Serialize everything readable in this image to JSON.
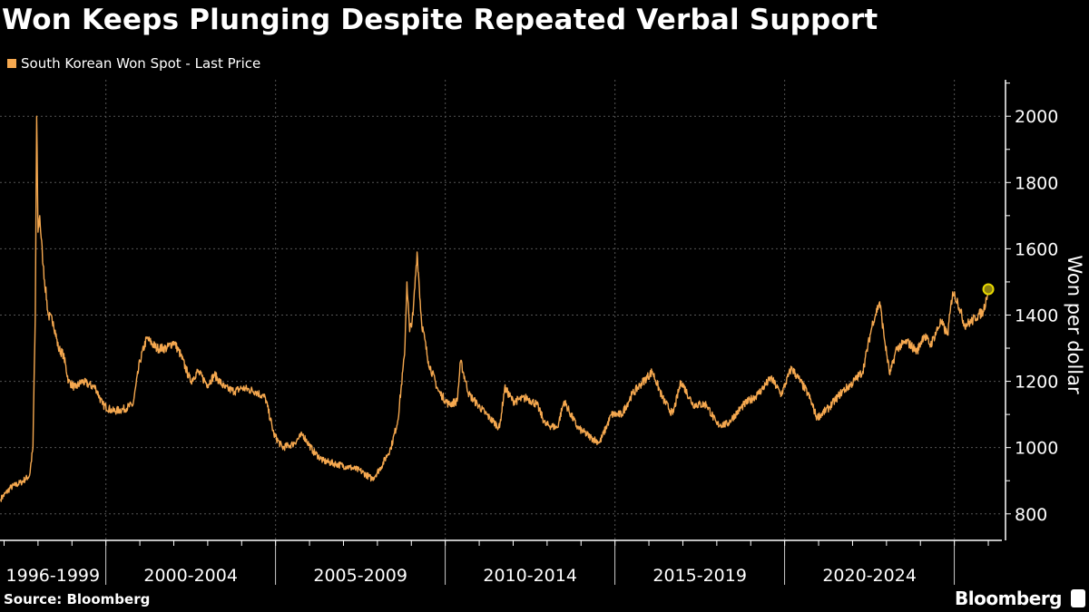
{
  "title": "Won Keeps Plunging Despite Repeated Verbal Support",
  "source": "Source: Bloomberg",
  "brand": "Bloomberg",
  "colors": {
    "line": "#f5a84f",
    "last_point": "#e8d800",
    "grid": "#555555"
  },
  "chart_data": {
    "type": "line",
    "title": "Won Keeps Plunging Despite Repeated Verbal Support",
    "xlabel": "",
    "ylabel": "Won per dollar",
    "legend": {
      "position": "top-left",
      "entries": [
        "South Korean Won Spot - Last Price"
      ]
    },
    "grid": true,
    "ylim": [
      720,
      2110
    ],
    "xlim": [
      1996.88,
      2026.4
    ],
    "yticks": [
      800,
      1000,
      1200,
      1400,
      1600,
      1800,
      2000
    ],
    "xgroups": [
      {
        "label": "1996-1999",
        "start": 1996.88,
        "end": 2000
      },
      {
        "label": "2000-2004",
        "start": 2000,
        "end": 2005
      },
      {
        "label": "2005-2009",
        "start": 2005,
        "end": 2010
      },
      {
        "label": "2010-2014",
        "start": 2010,
        "end": 2015
      },
      {
        "label": "2015-2019",
        "start": 2015,
        "end": 2020
      },
      {
        "label": "2020-2024",
        "start": 2020,
        "end": 2025
      },
      {
        "label": "",
        "start": 2025,
        "end": 2026.4
      }
    ],
    "series": [
      {
        "name": "South Korean Won Spot - Last Price",
        "x": [
          1996.9,
          1997.2,
          1997.5,
          1997.75,
          1997.85,
          1997.92,
          1997.96,
          1998.0,
          1998.05,
          1998.15,
          1998.3,
          1998.45,
          1998.6,
          1998.75,
          1998.9,
          1999.1,
          1999.3,
          1999.5,
          1999.7,
          1999.9,
          2000.2,
          2000.5,
          2000.8,
          2001.0,
          2001.2,
          2001.3,
          2001.5,
          2001.8,
          2002.0,
          2002.2,
          2002.5,
          2002.7,
          2003.0,
          2003.2,
          2003.5,
          2003.8,
          2004.0,
          2004.4,
          2004.7,
          2004.95,
          2005.2,
          2005.5,
          2005.8,
          2006.1,
          2006.4,
          2006.8,
          2007.2,
          2007.5,
          2007.85,
          2008.1,
          2008.4,
          2008.6,
          2008.8,
          2008.87,
          2008.95,
          2009.05,
          2009.17,
          2009.3,
          2009.5,
          2009.8,
          2010.1,
          2010.35,
          2010.45,
          2010.7,
          2010.95,
          2011.3,
          2011.6,
          2011.75,
          2012.0,
          2012.4,
          2012.7,
          2012.95,
          2013.3,
          2013.5,
          2013.9,
          2014.3,
          2014.55,
          2014.9,
          2015.2,
          2015.5,
          2015.75,
          2016.1,
          2016.4,
          2016.7,
          2016.95,
          2017.3,
          2017.7,
          2018.0,
          2018.3,
          2018.8,
          2019.2,
          2019.6,
          2019.9,
          2020.2,
          2020.4,
          2020.7,
          2020.95,
          2021.3,
          2021.7,
          2021.95,
          2022.3,
          2022.6,
          2022.8,
          2022.95,
          2023.1,
          2023.3,
          2023.6,
          2023.9,
          2024.1,
          2024.3,
          2024.6,
          2024.8,
          2024.95,
          2025.1,
          2025.3,
          2025.5,
          2025.7,
          2025.85,
          2026.0
        ],
        "y": [
          845,
          880,
          895,
          915,
          1000,
          1400,
          2000,
          1650,
          1700,
          1550,
          1400,
          1380,
          1300,
          1280,
          1200,
          1180,
          1200,
          1190,
          1180,
          1130,
          1110,
          1115,
          1130,
          1260,
          1330,
          1320,
          1300,
          1300,
          1320,
          1280,
          1200,
          1230,
          1190,
          1220,
          1180,
          1170,
          1180,
          1170,
          1150,
          1040,
          1000,
          1010,
          1040,
          990,
          960,
          950,
          940,
          930,
          905,
          940,
          1000,
          1080,
          1280,
          1500,
          1350,
          1400,
          1590,
          1380,
          1260,
          1170,
          1130,
          1140,
          1260,
          1160,
          1130,
          1090,
          1060,
          1180,
          1140,
          1150,
          1130,
          1070,
          1060,
          1140,
          1060,
          1030,
          1015,
          1100,
          1100,
          1160,
          1190,
          1230,
          1150,
          1100,
          1200,
          1130,
          1130,
          1070,
          1070,
          1130,
          1160,
          1210,
          1160,
          1240,
          1210,
          1160,
          1090,
          1120,
          1170,
          1190,
          1230,
          1380,
          1440,
          1320,
          1220,
          1300,
          1320,
          1290,
          1340,
          1310,
          1380,
          1340,
          1470,
          1440,
          1370,
          1380,
          1400,
          1410,
          1478
        ]
      }
    ],
    "last_point": {
      "x": 2026.0,
      "y": 1478
    }
  }
}
